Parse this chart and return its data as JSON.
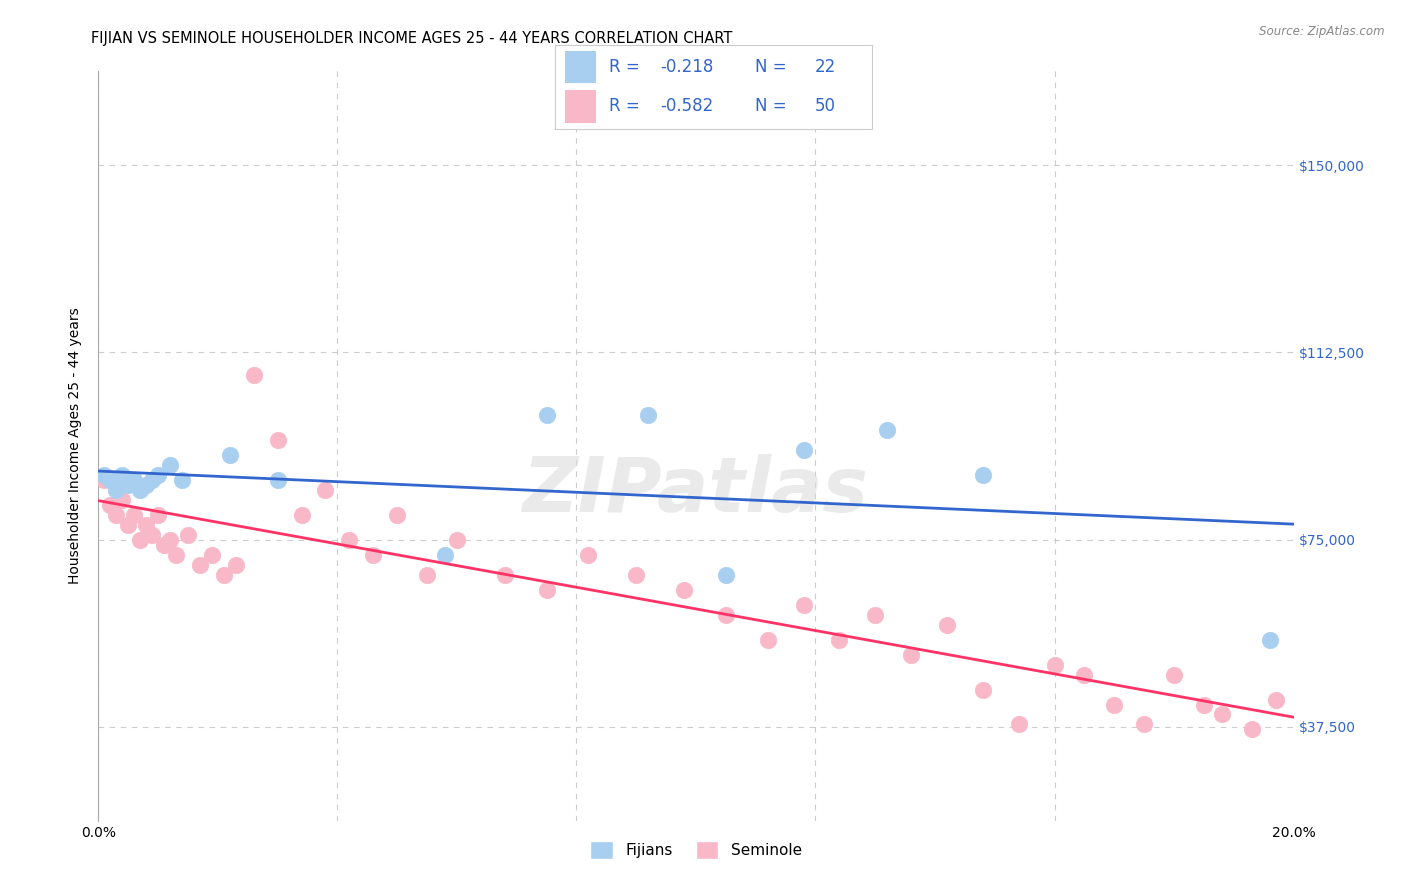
{
  "title": "FIJIAN VS SEMINOLE HOUSEHOLDER INCOME AGES 25 - 44 YEARS CORRELATION CHART",
  "source": "Source: ZipAtlas.com",
  "ylabel": "Householder Income Ages 25 - 44 years",
  "xlim": [
    0.0,
    0.2
  ],
  "ylim": [
    18750,
    168750
  ],
  "yticks": [
    37500,
    75000,
    112500,
    150000
  ],
  "ytick_labels": [
    "$37,500",
    "$75,000",
    "$112,500",
    "$150,000"
  ],
  "xticks": [
    0.0,
    0.04,
    0.08,
    0.12,
    0.16,
    0.2
  ],
  "xtick_labels": [
    "0.0%",
    "",
    "",
    "",
    "",
    "20.0%"
  ],
  "fijian_R": "-0.218",
  "fijian_N": "22",
  "seminole_R": "-0.582",
  "seminole_N": "50",
  "fijian_color": "#A8CFF0",
  "seminole_color": "#F9B8C8",
  "fijian_line_color": "#3366CC",
  "seminole_line_color": "#FF3366",
  "legend_text_color": "#3366CC",
  "fijian_x": [
    0.001,
    0.002,
    0.003,
    0.004,
    0.005,
    0.006,
    0.007,
    0.008,
    0.009,
    0.01,
    0.012,
    0.014,
    0.022,
    0.03,
    0.058,
    0.075,
    0.092,
    0.105,
    0.118,
    0.132,
    0.148,
    0.196
  ],
  "fijian_y": [
    88000,
    87000,
    85000,
    88000,
    86000,
    87000,
    85000,
    86000,
    87000,
    88000,
    90000,
    87000,
    92000,
    87000,
    72000,
    100000,
    100000,
    68000,
    93000,
    97000,
    88000,
    55000
  ],
  "seminole_x": [
    0.001,
    0.002,
    0.003,
    0.004,
    0.005,
    0.006,
    0.007,
    0.008,
    0.009,
    0.01,
    0.011,
    0.012,
    0.013,
    0.015,
    0.017,
    0.019,
    0.021,
    0.023,
    0.026,
    0.03,
    0.034,
    0.038,
    0.042,
    0.046,
    0.05,
    0.055,
    0.06,
    0.068,
    0.075,
    0.082,
    0.09,
    0.098,
    0.105,
    0.112,
    0.118,
    0.124,
    0.13,
    0.136,
    0.142,
    0.148,
    0.154,
    0.16,
    0.165,
    0.17,
    0.175,
    0.18,
    0.185,
    0.188,
    0.193,
    0.197
  ],
  "seminole_y": [
    87000,
    82000,
    80000,
    83000,
    78000,
    80000,
    75000,
    78000,
    76000,
    80000,
    74000,
    75000,
    72000,
    76000,
    70000,
    72000,
    68000,
    70000,
    108000,
    95000,
    80000,
    85000,
    75000,
    72000,
    80000,
    68000,
    75000,
    68000,
    65000,
    72000,
    68000,
    65000,
    60000,
    55000,
    62000,
    55000,
    60000,
    52000,
    58000,
    45000,
    38000,
    50000,
    48000,
    42000,
    38000,
    48000,
    42000,
    40000,
    37000,
    43000
  ],
  "background_color": "#FFFFFF",
  "grid_color": "#CCCCCC",
  "watermark": "ZIPatlas",
  "title_fontsize": 10.5,
  "axis_label_fontsize": 10,
  "tick_fontsize": 10,
  "legend_fontsize": 12
}
